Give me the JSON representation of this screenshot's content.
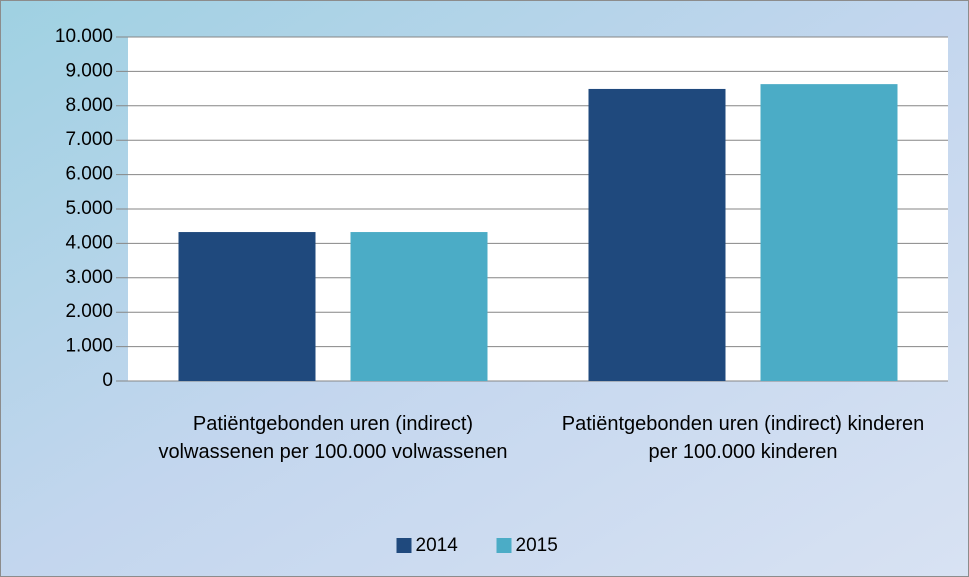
{
  "chart_data": {
    "type": "bar",
    "categories": [
      "Patiëntgebonden uren (indirect) volwassenen per 100.000 volwassenen",
      "Patiëntgebonden uren (indirect) kinderen per 100.000 kinderen"
    ],
    "series": [
      {
        "name": "2014",
        "color": "#1f497d",
        "values": [
          4330,
          8490
        ]
      },
      {
        "name": "2015",
        "color": "#4bacc6",
        "values": [
          4330,
          8630
        ]
      }
    ],
    "ylim": [
      0,
      10000
    ],
    "yticks": [
      0,
      {
        "value": 1000,
        "label": "1.000"
      },
      {
        "value": 2000,
        "label": "2.000"
      },
      {
        "value": 3000,
        "label": "3.000"
      },
      {
        "value": 4000,
        "label": "4.000"
      },
      {
        "value": 5000,
        "label": "5.000"
      },
      {
        "value": 6000,
        "label": "6.000"
      },
      {
        "value": 7000,
        "label": "7.000"
      },
      {
        "value": 8000,
        "label": "8.000"
      },
      {
        "value": 9000,
        "label": "9.000"
      },
      {
        "value": 10000,
        "label": "10.000"
      }
    ],
    "grid": true,
    "legend": "bottom"
  }
}
